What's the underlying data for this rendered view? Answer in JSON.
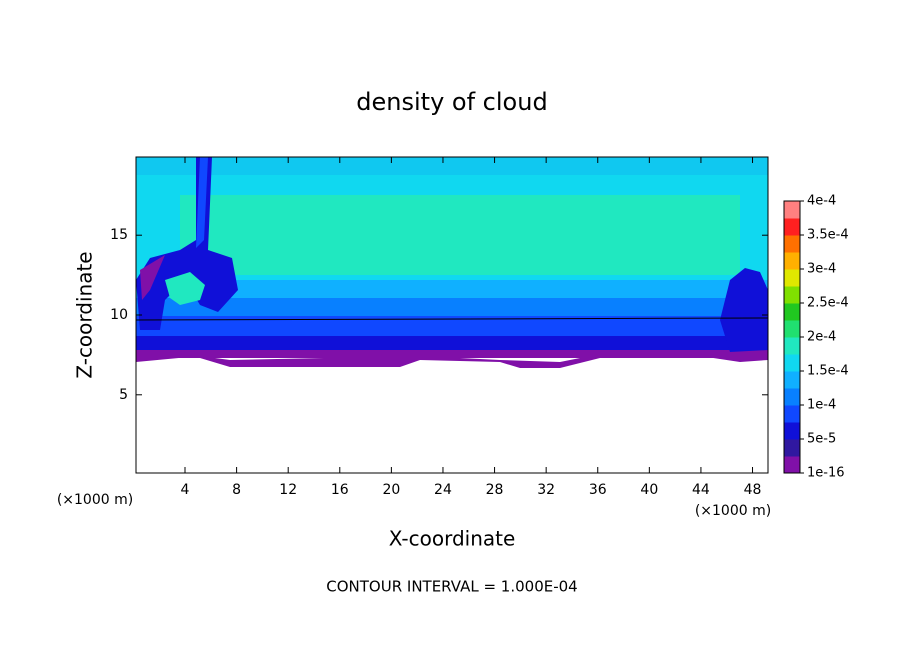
{
  "chart_data": {
    "type": "contour",
    "title": "density of cloud",
    "x_label": "X-coordinate",
    "y_label": "Z-coordinate",
    "x_unit": "(×1000 m)",
    "y_unit": "(×1000 m)",
    "footer": "CONTOUR INTERVAL = 1.000E-04",
    "xlim": [
      0.2,
      49.2
    ],
    "ylim": [
      0.1,
      19.9
    ],
    "xticks": [
      4,
      8,
      12,
      16,
      20,
      24,
      28,
      32,
      36,
      40,
      44,
      48
    ],
    "yticks": [
      5,
      10,
      15
    ],
    "colorbar": {
      "ticks": [
        {
          "value": 1e-16,
          "label": "1e-16"
        },
        {
          "value": 5e-05,
          "label": "5e-5"
        },
        {
          "value": 0.0001,
          "label": "1e-4"
        },
        {
          "value": 0.00015,
          "label": "1.5e-4"
        },
        {
          "value": 0.0002,
          "label": "2e-4"
        },
        {
          "value": 0.00025,
          "label": "2.5e-4"
        },
        {
          "value": 0.0003,
          "label": "3e-4"
        },
        {
          "value": 0.00035,
          "label": "3.5e-4"
        },
        {
          "value": 0.0004,
          "label": "4e-4"
        }
      ],
      "colors": [
        "#8010a8",
        "#3018a0",
        "#1010d8",
        "#1048ff",
        "#0880ff",
        "#10b0ff",
        "#10d8f0",
        "#20e8c0",
        "#20e070",
        "#20c820",
        "#80e000",
        "#e0e800",
        "#ffb000",
        "#ff7000",
        "#ff2020",
        "#ff8080"
      ]
    }
  }
}
